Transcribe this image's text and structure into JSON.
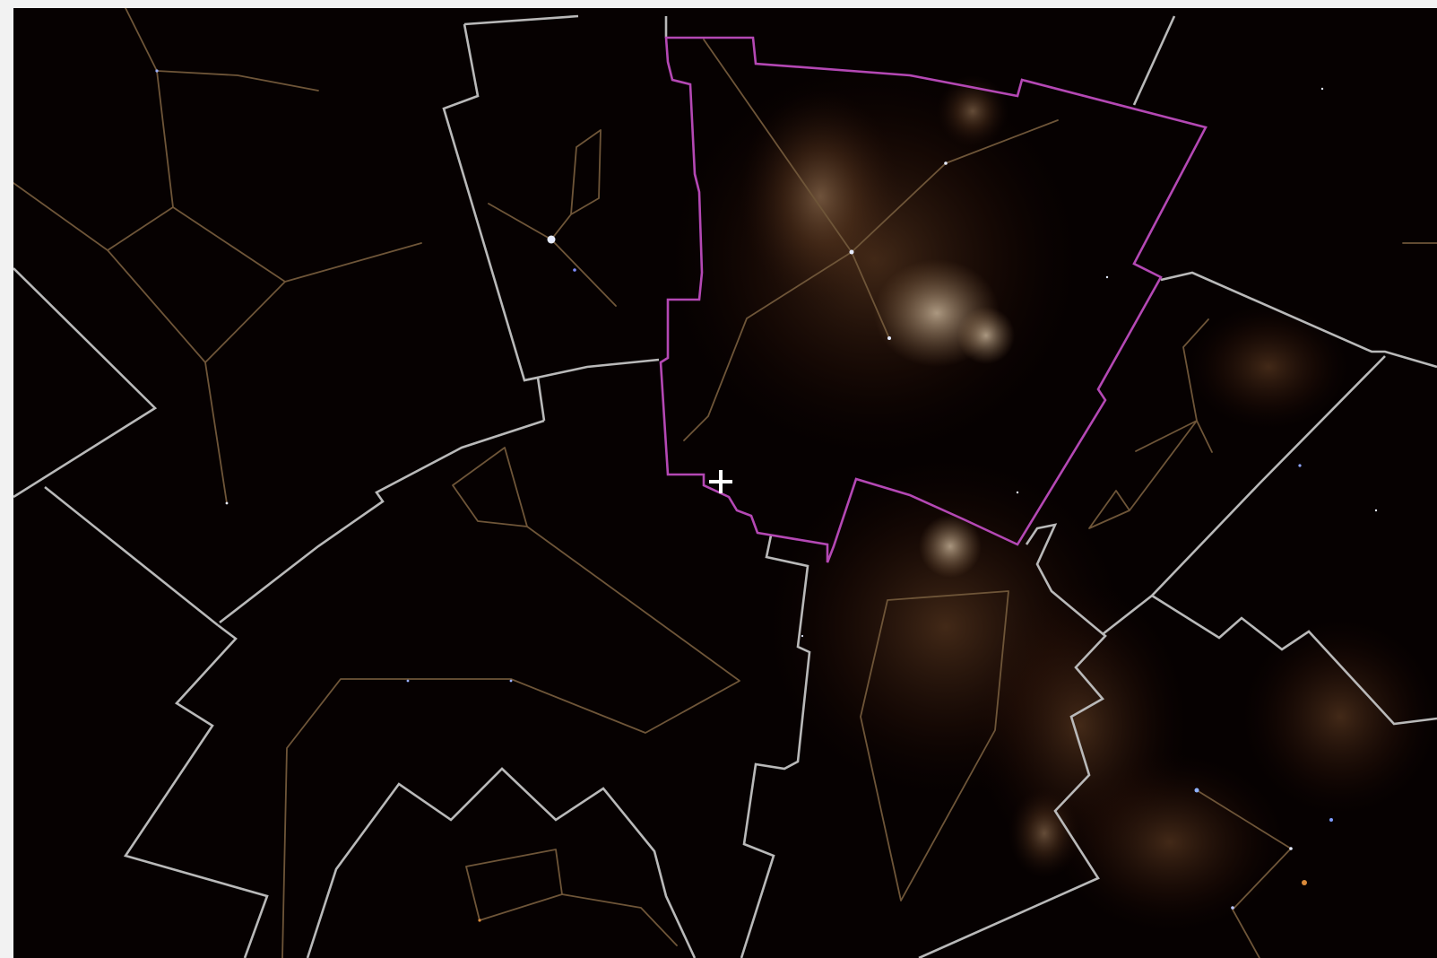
{
  "colors": {
    "page_background": "#f2f2f2",
    "sky_background": "#060101",
    "nebula_glow": "#c89a6a",
    "boundary_line": "#b9b9b9",
    "highlighted_boundary_line": "#b448b4",
    "constellation_figure_line": "#6e5538",
    "star": "#e6ecff",
    "crosshair": "#ffffff"
  },
  "sky_view": {
    "highlighted_constellation_count": 1,
    "crosshair_icon": "crosshair-icon"
  }
}
